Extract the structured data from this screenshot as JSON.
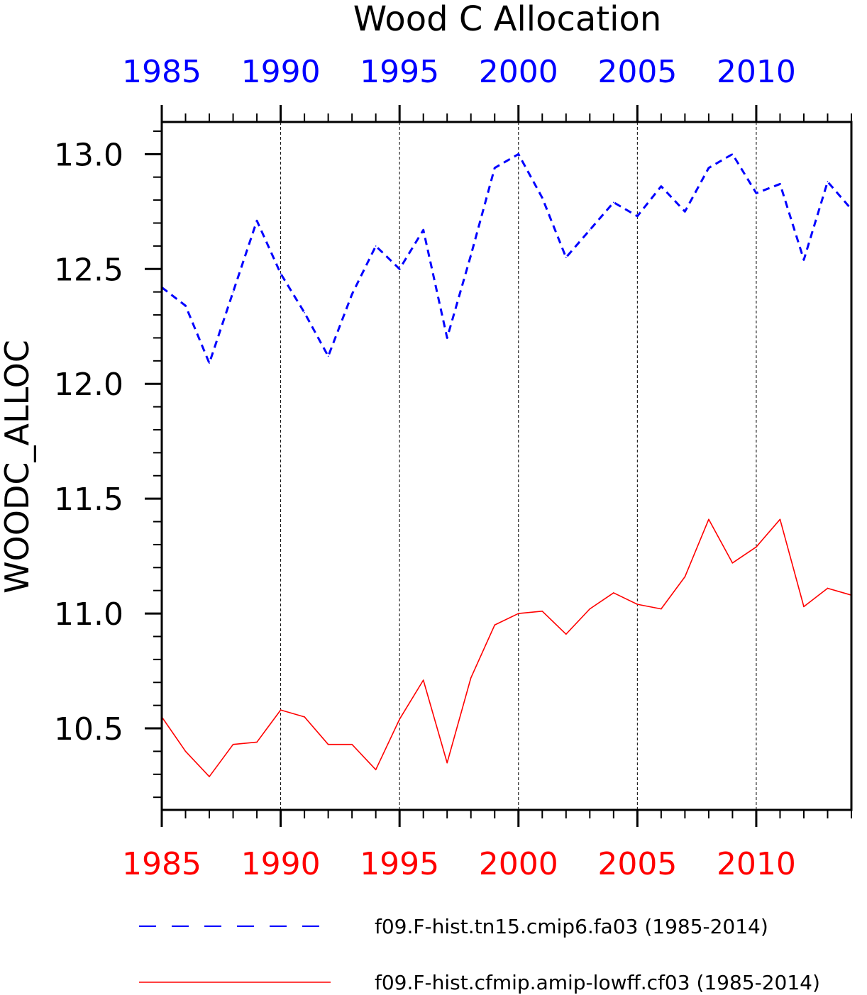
{
  "chart_data": {
    "type": "line",
    "title": "Wood C Allocation",
    "ylabel": "WOODC_ALLOC",
    "xlim": [
      1985,
      2014
    ],
    "ylim": [
      10.145,
      13.14
    ],
    "yticks_major": [
      "10.5",
      "11.0",
      "11.5",
      "12.0",
      "12.5",
      "13.0"
    ],
    "xticks_major": [
      "1985",
      "1990",
      "1995",
      "2000",
      "2005",
      "2010"
    ],
    "grid": "vertical dashed at major x ticks",
    "series": [
      {
        "name": "f09.F-hist.tn15.cmip6.fa03 (1985-2014)",
        "color": "#0000ff",
        "style": "dashed",
        "axis": "top",
        "x": [
          1985,
          1986,
          1987,
          1988,
          1989,
          1990,
          1991,
          1992,
          1993,
          1994,
          1995,
          1996,
          1997,
          1998,
          1999,
          2000,
          2001,
          2002,
          2003,
          2004,
          2005,
          2006,
          2007,
          2008,
          2009,
          2010,
          2011,
          2012,
          2013,
          2014
        ],
        "values": [
          12.42,
          12.34,
          12.09,
          12.4,
          12.71,
          12.48,
          12.31,
          12.12,
          12.39,
          12.6,
          12.5,
          12.67,
          12.2,
          12.56,
          12.94,
          13.0,
          12.81,
          12.55,
          12.67,
          12.79,
          12.73,
          12.86,
          12.75,
          12.94,
          13.0,
          12.83,
          12.87,
          12.54,
          12.88,
          12.76
        ]
      },
      {
        "name": "f09.F-hist.cfmip.amip-lowff.cf03 (1985-2014)",
        "color": "#ff0000",
        "style": "solid",
        "axis": "bottom",
        "x": [
          1985,
          1986,
          1987,
          1988,
          1989,
          1990,
          1991,
          1992,
          1993,
          1994,
          1995,
          1996,
          1997,
          1998,
          1999,
          2000,
          2001,
          2002,
          2003,
          2004,
          2005,
          2006,
          2007,
          2008,
          2009,
          2010,
          2011,
          2012,
          2013,
          2014
        ],
        "values": [
          10.55,
          10.4,
          10.29,
          10.43,
          10.44,
          10.58,
          10.55,
          10.43,
          10.43,
          10.32,
          10.54,
          10.71,
          10.35,
          10.72,
          10.95,
          11.0,
          11.01,
          10.91,
          11.02,
          11.09,
          11.04,
          11.02,
          11.16,
          11.41,
          11.22,
          11.29,
          11.41,
          11.03,
          11.11,
          11.08
        ]
      }
    ]
  },
  "colors": {
    "top_axis": "#0000ff",
    "bottom_axis": "#ff0000",
    "frame": "#000000"
  }
}
